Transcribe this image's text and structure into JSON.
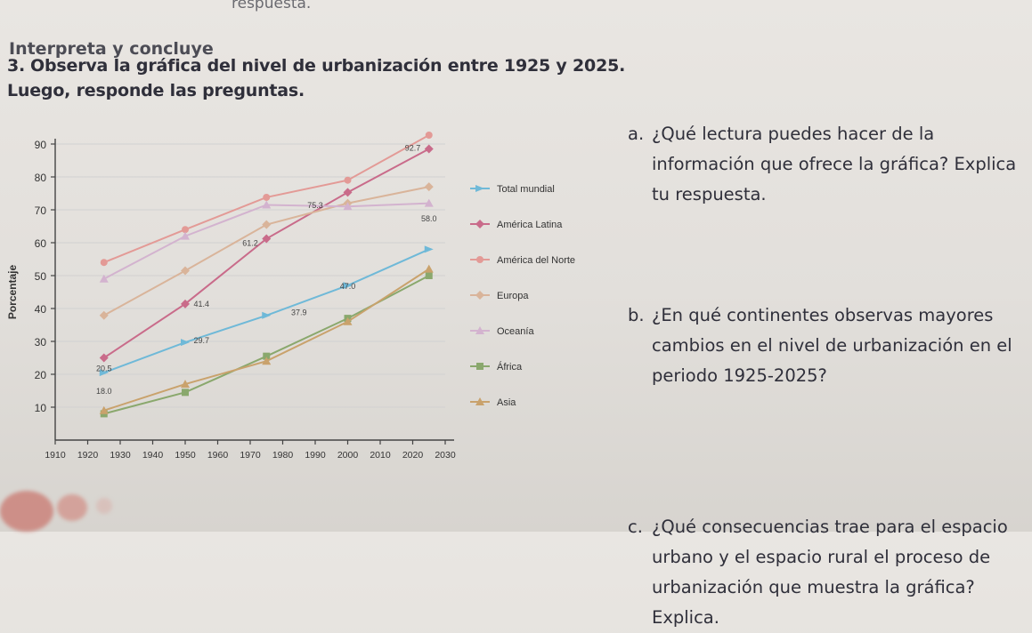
{
  "page": {
    "top_snippet": "respuesta.",
    "section_title": "Interpreta y concluye",
    "question3_number": "3.",
    "question3_text": "Observa la gráfica del nivel de urbanización entre 1925 y 2025. Luego, responde las preguntas."
  },
  "questions": [
    {
      "label": "a.",
      "text": "¿Qué lectura puedes hacer de la información que ofrece la gráfica? Explica tu respuesta."
    },
    {
      "label": "b.",
      "text": "¿En qué continentes observas mayores cambios en el nivel de urbanización en el periodo 1925-2025?"
    },
    {
      "label": "c.",
      "text": "¿Qué consecuencias trae para el espacio urbano y el espacio rural el proceso de urbanización que muestra la gráfica? Explica."
    }
  ],
  "chart_data": {
    "type": "line",
    "ylabel": "Porcentaje",
    "yticks": [
      10,
      20,
      30,
      40,
      50,
      60,
      70,
      80,
      90
    ],
    "ylim": [
      0,
      90
    ],
    "xticks": [
      1910,
      1920,
      1930,
      1940,
      1950,
      1960,
      1970,
      1980,
      1990,
      2000,
      2010,
      2020,
      2030
    ],
    "xlim": [
      1910,
      2030
    ],
    "legend_position": "right",
    "data_labels": [
      {
        "text": "92.7",
        "x": 2020,
        "y": 88
      },
      {
        "text": "75.3",
        "x": 1990,
        "y": 70.5
      },
      {
        "text": "58.0",
        "x": 2025,
        "y": 66.5
      },
      {
        "text": "61.2",
        "x": 1970,
        "y": 59
      },
      {
        "text": "47.0",
        "x": 2000,
        "y": 46
      },
      {
        "text": "41.4",
        "x": 1955,
        "y": 40.5
      },
      {
        "text": "37.9",
        "x": 1985,
        "y": 38
      },
      {
        "text": "29.7",
        "x": 1955,
        "y": 29.5
      },
      {
        "text": "20.5",
        "x": 1925,
        "y": 21
      },
      {
        "text": "18.0",
        "x": 1925,
        "y": 14
      }
    ],
    "series": [
      {
        "name": "Total mundial",
        "color": "#6fb9d8",
        "marker": "arrow",
        "x": [
          1925,
          1950,
          1975,
          2000,
          2025
        ],
        "y": [
          20.5,
          29.7,
          37.9,
          47.0,
          58.0
        ]
      },
      {
        "name": "América Latina",
        "color": "#c96b8a",
        "marker": "diamond",
        "x": [
          1925,
          1950,
          1975,
          2000,
          2025
        ],
        "y": [
          25,
          41.4,
          61.2,
          75.3,
          88.5
        ]
      },
      {
        "name": "América del Norte",
        "color": "#e39a96",
        "marker": "circle",
        "x": [
          1925,
          1950,
          1975,
          2000,
          2025
        ],
        "y": [
          54,
          64,
          73.8,
          79,
          92.7
        ]
      },
      {
        "name": "Europa",
        "color": "#d9b49a",
        "marker": "diamond",
        "x": [
          1925,
          1950,
          1975,
          2000,
          2025
        ],
        "y": [
          37.9,
          51.5,
          65.5,
          72,
          77
        ]
      },
      {
        "name": "Oceanía",
        "color": "#d3b3cf",
        "marker": "triangle",
        "x": [
          1925,
          1950,
          1975,
          2000,
          2025
        ],
        "y": [
          49,
          62,
          71.5,
          71,
          72
        ]
      },
      {
        "name": "África",
        "color": "#8aa86d",
        "marker": "square",
        "x": [
          1925,
          1950,
          1975,
          2000,
          2025
        ],
        "y": [
          8,
          14.5,
          25.5,
          37,
          50
        ]
      },
      {
        "name": "Asia",
        "color": "#c9a26c",
        "marker": "triangle",
        "x": [
          1925,
          1950,
          1975,
          2000,
          2025
        ],
        "y": [
          9,
          17,
          24,
          36,
          52
        ]
      }
    ]
  },
  "colors": {
    "text_dark": "#2f2f3a",
    "axis": "#444444",
    "grid": "#d1d1d1"
  }
}
